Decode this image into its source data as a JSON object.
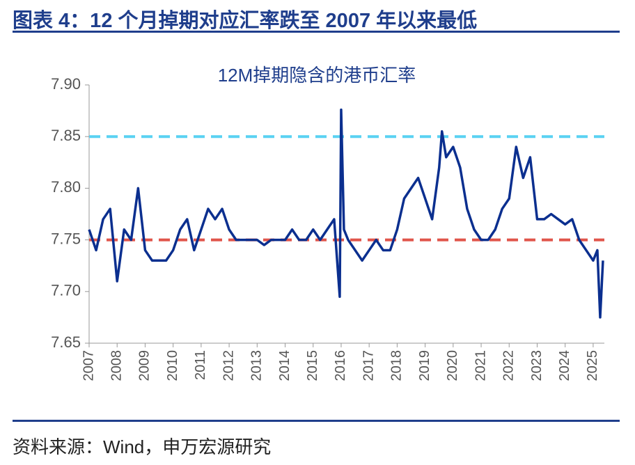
{
  "header": {
    "title": "图表 4：12 个月掉期对应汇率跌至 2007 年以来最低"
  },
  "footer": {
    "source": "资料来源：Wind，申万宏源研究"
  },
  "chart_data": {
    "type": "line",
    "title": "12M掉期隐含的港币汇率",
    "x": [
      2007.0,
      2007.25,
      2007.5,
      2007.75,
      2008.0,
      2008.25,
      2008.5,
      2008.75,
      2009.0,
      2009.25,
      2009.5,
      2009.75,
      2010.0,
      2010.25,
      2010.5,
      2010.75,
      2011.0,
      2011.25,
      2011.5,
      2011.75,
      2012.0,
      2012.25,
      2012.5,
      2012.75,
      2013.0,
      2013.25,
      2013.5,
      2013.75,
      2014.0,
      2014.25,
      2014.5,
      2014.75,
      2015.0,
      2015.25,
      2015.5,
      2015.75,
      2015.95,
      2016.0,
      2016.1,
      2016.25,
      2016.5,
      2016.75,
      2017.0,
      2017.25,
      2017.5,
      2017.75,
      2018.0,
      2018.25,
      2018.5,
      2018.75,
      2019.0,
      2019.25,
      2019.5,
      2019.6,
      2019.75,
      2020.0,
      2020.25,
      2020.5,
      2020.75,
      2021.0,
      2021.25,
      2021.5,
      2021.75,
      2022.0,
      2022.25,
      2022.5,
      2022.75,
      2023.0,
      2023.25,
      2023.5,
      2023.75,
      2024.0,
      2024.25,
      2024.5,
      2024.75,
      2025.0,
      2025.15,
      2025.25,
      2025.35
    ],
    "series": [
      {
        "color": "#0b2f8f",
        "values": [
          7.76,
          7.74,
          7.77,
          7.78,
          7.71,
          7.76,
          7.75,
          7.8,
          7.74,
          7.73,
          7.73,
          7.73,
          7.74,
          7.76,
          7.77,
          7.74,
          7.76,
          7.78,
          7.77,
          7.78,
          7.76,
          7.75,
          7.75,
          7.75,
          7.75,
          7.745,
          7.75,
          7.75,
          7.75,
          7.76,
          7.75,
          7.75,
          7.76,
          7.75,
          7.76,
          7.77,
          7.695,
          7.876,
          7.76,
          7.75,
          7.74,
          7.73,
          7.74,
          7.75,
          7.74,
          7.74,
          7.76,
          7.79,
          7.8,
          7.81,
          7.79,
          7.77,
          7.82,
          7.855,
          7.83,
          7.84,
          7.82,
          7.78,
          7.76,
          7.75,
          7.75,
          7.76,
          7.78,
          7.79,
          7.84,
          7.81,
          7.83,
          7.77,
          7.77,
          7.775,
          7.77,
          7.765,
          7.77,
          7.75,
          7.74,
          7.73,
          7.74,
          7.675,
          7.73
        ]
      }
    ],
    "reference_lines": [
      {
        "value": 7.85,
        "color": "#5ad2f2"
      },
      {
        "value": 7.75,
        "color": "#e0554b"
      }
    ],
    "xlim": [
      2007,
      2025.4
    ],
    "xticks": [
      2007,
      2008,
      2009,
      2010,
      2011,
      2012,
      2013,
      2014,
      2015,
      2016,
      2017,
      2018,
      2019,
      2020,
      2021,
      2022,
      2023,
      2024,
      2025
    ],
    "ylim": [
      7.65,
      7.9
    ],
    "yticks": [
      {
        "value": 7.9,
        "label": "7.90"
      },
      7.85,
      {
        "value": 7.8,
        "label": "7.80"
      },
      7.75,
      {
        "value": 7.7,
        "label": "7.70"
      },
      7.65
    ]
  }
}
